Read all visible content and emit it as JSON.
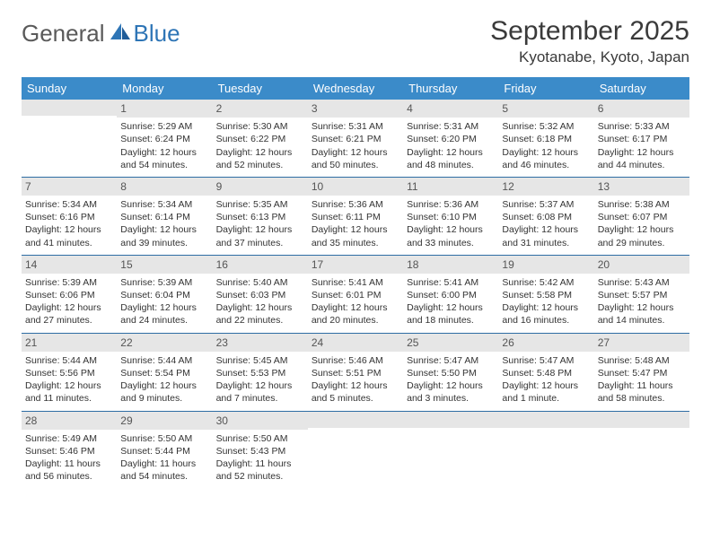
{
  "logo": {
    "text1": "General",
    "text2": "Blue"
  },
  "title": "September 2025",
  "location": "Kyotanabe, Kyoto, Japan",
  "colors": {
    "header_bg": "#3b8bc9",
    "header_text": "#ffffff",
    "daynum_bg": "#e6e6e6",
    "daynum_text": "#555555",
    "border": "#2e6da4",
    "logo_gray": "#5a5a5a",
    "logo_blue": "#2e75b6",
    "text": "#333333",
    "background": "#ffffff"
  },
  "weekdays": [
    "Sunday",
    "Monday",
    "Tuesday",
    "Wednesday",
    "Thursday",
    "Friday",
    "Saturday"
  ],
  "weeks": [
    [
      {
        "n": "",
        "sr": "",
        "ss": "",
        "dl": ""
      },
      {
        "n": "1",
        "sr": "Sunrise: 5:29 AM",
        "ss": "Sunset: 6:24 PM",
        "dl": "Daylight: 12 hours and 54 minutes."
      },
      {
        "n": "2",
        "sr": "Sunrise: 5:30 AM",
        "ss": "Sunset: 6:22 PM",
        "dl": "Daylight: 12 hours and 52 minutes."
      },
      {
        "n": "3",
        "sr": "Sunrise: 5:31 AM",
        "ss": "Sunset: 6:21 PM",
        "dl": "Daylight: 12 hours and 50 minutes."
      },
      {
        "n": "4",
        "sr": "Sunrise: 5:31 AM",
        "ss": "Sunset: 6:20 PM",
        "dl": "Daylight: 12 hours and 48 minutes."
      },
      {
        "n": "5",
        "sr": "Sunrise: 5:32 AM",
        "ss": "Sunset: 6:18 PM",
        "dl": "Daylight: 12 hours and 46 minutes."
      },
      {
        "n": "6",
        "sr": "Sunrise: 5:33 AM",
        "ss": "Sunset: 6:17 PM",
        "dl": "Daylight: 12 hours and 44 minutes."
      }
    ],
    [
      {
        "n": "7",
        "sr": "Sunrise: 5:34 AM",
        "ss": "Sunset: 6:16 PM",
        "dl": "Daylight: 12 hours and 41 minutes."
      },
      {
        "n": "8",
        "sr": "Sunrise: 5:34 AM",
        "ss": "Sunset: 6:14 PM",
        "dl": "Daylight: 12 hours and 39 minutes."
      },
      {
        "n": "9",
        "sr": "Sunrise: 5:35 AM",
        "ss": "Sunset: 6:13 PM",
        "dl": "Daylight: 12 hours and 37 minutes."
      },
      {
        "n": "10",
        "sr": "Sunrise: 5:36 AM",
        "ss": "Sunset: 6:11 PM",
        "dl": "Daylight: 12 hours and 35 minutes."
      },
      {
        "n": "11",
        "sr": "Sunrise: 5:36 AM",
        "ss": "Sunset: 6:10 PM",
        "dl": "Daylight: 12 hours and 33 minutes."
      },
      {
        "n": "12",
        "sr": "Sunrise: 5:37 AM",
        "ss": "Sunset: 6:08 PM",
        "dl": "Daylight: 12 hours and 31 minutes."
      },
      {
        "n": "13",
        "sr": "Sunrise: 5:38 AM",
        "ss": "Sunset: 6:07 PM",
        "dl": "Daylight: 12 hours and 29 minutes."
      }
    ],
    [
      {
        "n": "14",
        "sr": "Sunrise: 5:39 AM",
        "ss": "Sunset: 6:06 PM",
        "dl": "Daylight: 12 hours and 27 minutes."
      },
      {
        "n": "15",
        "sr": "Sunrise: 5:39 AM",
        "ss": "Sunset: 6:04 PM",
        "dl": "Daylight: 12 hours and 24 minutes."
      },
      {
        "n": "16",
        "sr": "Sunrise: 5:40 AM",
        "ss": "Sunset: 6:03 PM",
        "dl": "Daylight: 12 hours and 22 minutes."
      },
      {
        "n": "17",
        "sr": "Sunrise: 5:41 AM",
        "ss": "Sunset: 6:01 PM",
        "dl": "Daylight: 12 hours and 20 minutes."
      },
      {
        "n": "18",
        "sr": "Sunrise: 5:41 AM",
        "ss": "Sunset: 6:00 PM",
        "dl": "Daylight: 12 hours and 18 minutes."
      },
      {
        "n": "19",
        "sr": "Sunrise: 5:42 AM",
        "ss": "Sunset: 5:58 PM",
        "dl": "Daylight: 12 hours and 16 minutes."
      },
      {
        "n": "20",
        "sr": "Sunrise: 5:43 AM",
        "ss": "Sunset: 5:57 PM",
        "dl": "Daylight: 12 hours and 14 minutes."
      }
    ],
    [
      {
        "n": "21",
        "sr": "Sunrise: 5:44 AM",
        "ss": "Sunset: 5:56 PM",
        "dl": "Daylight: 12 hours and 11 minutes."
      },
      {
        "n": "22",
        "sr": "Sunrise: 5:44 AM",
        "ss": "Sunset: 5:54 PM",
        "dl": "Daylight: 12 hours and 9 minutes."
      },
      {
        "n": "23",
        "sr": "Sunrise: 5:45 AM",
        "ss": "Sunset: 5:53 PM",
        "dl": "Daylight: 12 hours and 7 minutes."
      },
      {
        "n": "24",
        "sr": "Sunrise: 5:46 AM",
        "ss": "Sunset: 5:51 PM",
        "dl": "Daylight: 12 hours and 5 minutes."
      },
      {
        "n": "25",
        "sr": "Sunrise: 5:47 AM",
        "ss": "Sunset: 5:50 PM",
        "dl": "Daylight: 12 hours and 3 minutes."
      },
      {
        "n": "26",
        "sr": "Sunrise: 5:47 AM",
        "ss": "Sunset: 5:48 PM",
        "dl": "Daylight: 12 hours and 1 minute."
      },
      {
        "n": "27",
        "sr": "Sunrise: 5:48 AM",
        "ss": "Sunset: 5:47 PM",
        "dl": "Daylight: 11 hours and 58 minutes."
      }
    ],
    [
      {
        "n": "28",
        "sr": "Sunrise: 5:49 AM",
        "ss": "Sunset: 5:46 PM",
        "dl": "Daylight: 11 hours and 56 minutes."
      },
      {
        "n": "29",
        "sr": "Sunrise: 5:50 AM",
        "ss": "Sunset: 5:44 PM",
        "dl": "Daylight: 11 hours and 54 minutes."
      },
      {
        "n": "30",
        "sr": "Sunrise: 5:50 AM",
        "ss": "Sunset: 5:43 PM",
        "dl": "Daylight: 11 hours and 52 minutes."
      },
      {
        "n": "",
        "sr": "",
        "ss": "",
        "dl": ""
      },
      {
        "n": "",
        "sr": "",
        "ss": "",
        "dl": ""
      },
      {
        "n": "",
        "sr": "",
        "ss": "",
        "dl": ""
      },
      {
        "n": "",
        "sr": "",
        "ss": "",
        "dl": ""
      }
    ]
  ]
}
